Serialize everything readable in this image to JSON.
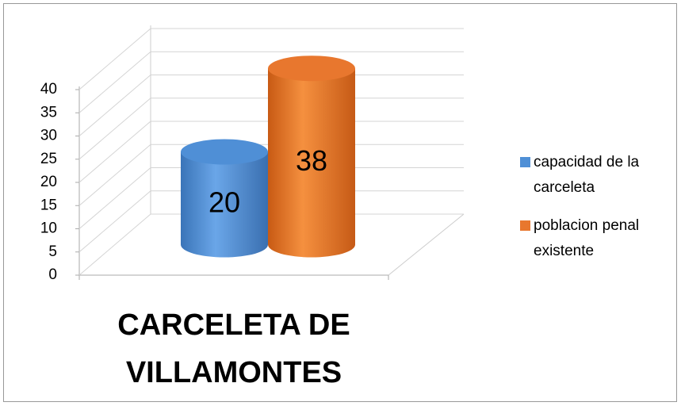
{
  "chart_data": {
    "type": "bar",
    "categories": [
      "CARCELETA DE VILLAMONTES"
    ],
    "series": [
      {
        "name": "capacidad de la carceleta",
        "color": "#4f8fd6",
        "values": [
          20
        ]
      },
      {
        "name": "poblacion penal existente",
        "color": "#e8772e",
        "values": [
          38
        ]
      }
    ],
    "ylim": [
      0,
      40
    ],
    "yticks": [
      0,
      5,
      10,
      15,
      20,
      25,
      30,
      35,
      40
    ],
    "grid": true,
    "legend": "right"
  }
}
